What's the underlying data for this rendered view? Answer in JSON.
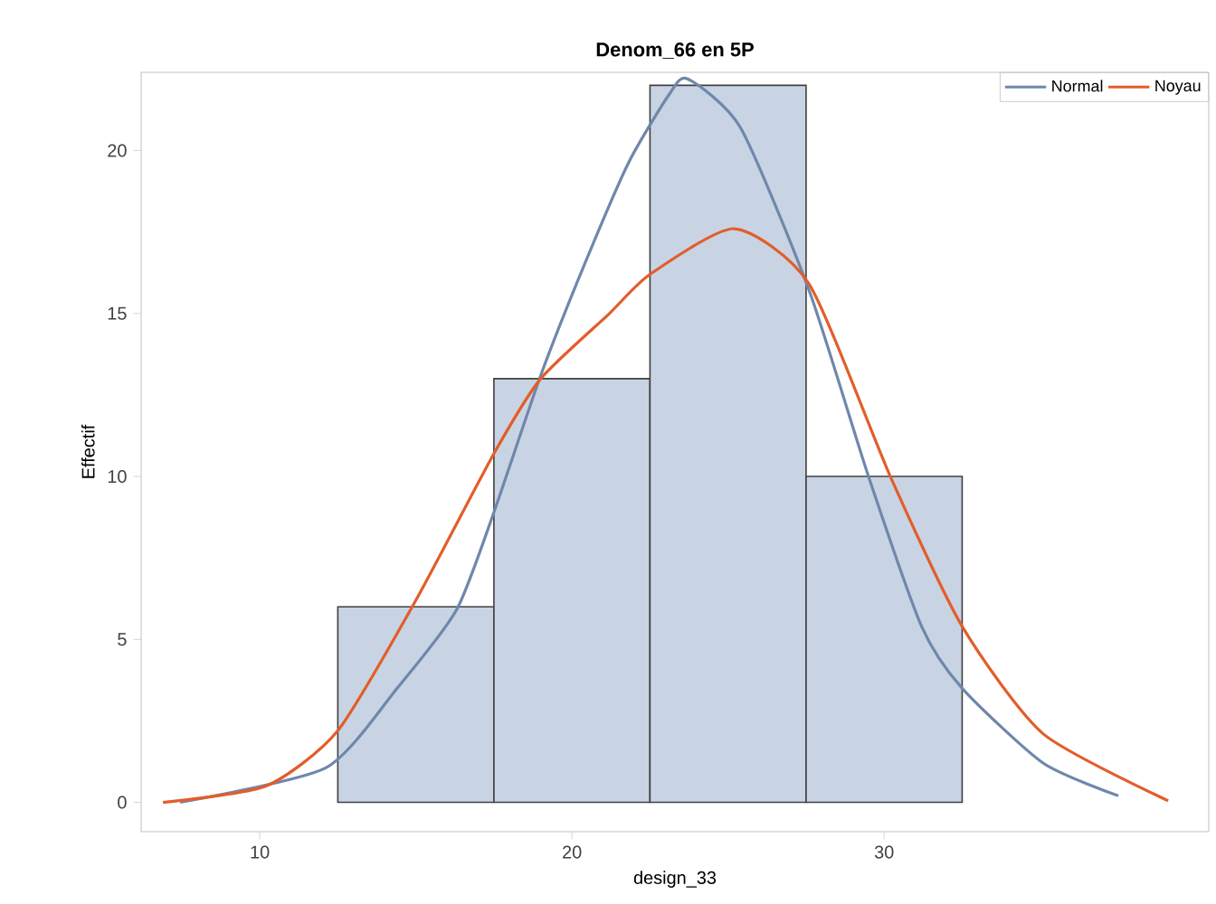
{
  "chart_data": {
    "type": "histogram",
    "title": "Denom_66 en 5P",
    "xlabel": "design_33",
    "ylabel": "Effectif",
    "bins": [
      12.5,
      17.5,
      22.5,
      27.5,
      32.5
    ],
    "values": [
      6,
      13,
      22,
      10
    ],
    "color": "#c8d4e3",
    "series": [
      {
        "type": "line",
        "name": "Normal",
        "color": "#6f87ab",
        "x": [
          7.45,
          12.1,
          14.4,
          16.3,
          17.5,
          19.0,
          20.4,
          21.8,
          23.1,
          23.7,
          25.4,
          27.6,
          29.5,
          31.2,
          32.5,
          35.1,
          37.5
        ],
        "values": [
          0,
          1.05,
          3.5,
          5.9,
          8.9,
          13.1,
          16.5,
          19.6,
          21.7,
          22.2,
          20.7,
          15.7,
          10.0,
          5.4,
          3.5,
          1.2,
          0.2
        ]
      },
      {
        "type": "line",
        "name": "Noyau",
        "color": "#e35d2a",
        "x": [
          6.9,
          10.2,
          12.5,
          15.0,
          17.5,
          19.0,
          21.2,
          22.5,
          25.2,
          27.6,
          30.2,
          32.5,
          35.1,
          39.1
        ],
        "values": [
          0,
          0.5,
          2.2,
          6.2,
          10.7,
          13.0,
          15.0,
          16.2,
          17.6,
          15.9,
          10.0,
          5.4,
          2.1,
          0.05
        ]
      }
    ],
    "xlim": [
      6.2,
      40.4
    ],
    "ylim": [
      -0.9,
      22.4
    ],
    "xticks": [
      10,
      20,
      30
    ],
    "yticks": [
      0,
      5,
      10,
      15,
      20
    ],
    "legend": "top right",
    "grid": false
  }
}
